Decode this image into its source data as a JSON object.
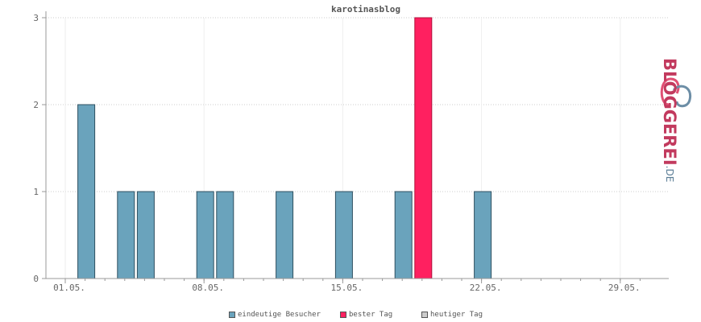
{
  "chart_data": {
    "type": "bar",
    "title": "karotinasblog",
    "y_ticks": [
      "0",
      "1",
      "2",
      "3"
    ],
    "ylim": [
      0,
      3
    ],
    "x_tick_labels": [
      "01.05.",
      "08.05.",
      "15.05.",
      "22.05.",
      "29.05."
    ],
    "x_tick_days": [
      1,
      8,
      15,
      22,
      29
    ],
    "days": [
      1,
      2,
      3,
      4,
      5,
      6,
      7,
      8,
      9,
      10,
      11,
      12,
      13,
      14,
      15,
      16,
      17,
      18,
      19,
      20,
      21,
      22,
      23,
      24,
      25,
      26,
      27,
      28,
      29,
      30
    ],
    "series": [
      {
        "name": "eindeutige Besucher",
        "values": [
          0,
          2,
          0,
          1,
          1,
          0,
          0,
          1,
          1,
          0,
          0,
          1,
          0,
          0,
          1,
          0,
          0,
          1,
          3,
          0,
          0,
          1,
          0,
          0,
          0,
          0,
          0,
          0,
          0,
          0
        ]
      }
    ],
    "best_day": 19,
    "colors": {
      "visitors": "#6aa3bc",
      "best": "#ff2060",
      "today": "#cccccc",
      "grid": "#cccccc",
      "axis": "#999999"
    },
    "grid": true,
    "legend_position": "bottom"
  },
  "legend": [
    {
      "label": "eindeutige Besucher",
      "color": "#6aa3bc"
    },
    {
      "label": "bester Tag",
      "color": "#ff2060"
    },
    {
      "label": "heutiger Tag",
      "color": "#cccccc"
    }
  ],
  "logo": {
    "main": "BLOGGEREI",
    "suffix": ".DE"
  }
}
